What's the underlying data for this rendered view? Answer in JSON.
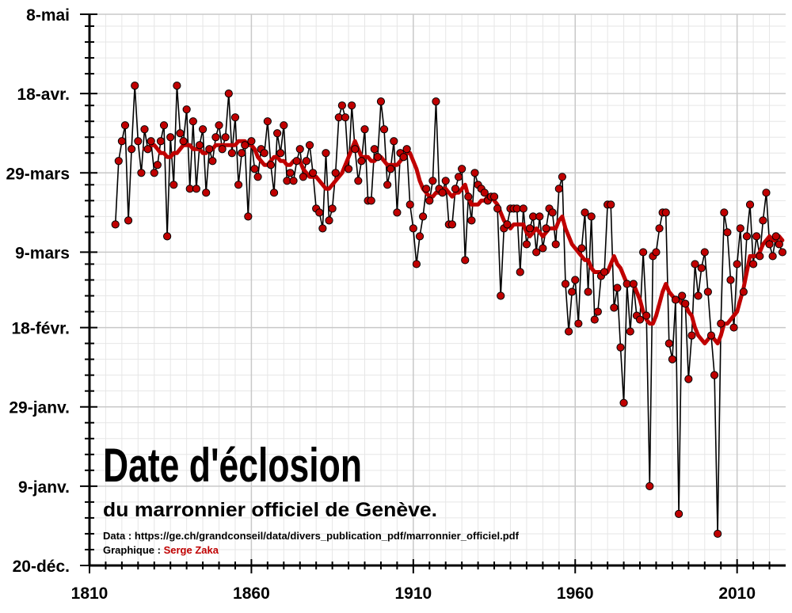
{
  "chart_data": {
    "type": "line",
    "title": "Date d'éclosion",
    "subtitle": "du marronnier officiel de Genève.",
    "source": "Data : https://ge.ch/grandconseil/data/divers_publication_pdf/marronnier_officiel.pdf",
    "credit": {
      "label": "Graphique :",
      "author": "Serge Zaka"
    },
    "x": [
      1818,
      1819,
      1820,
      1821,
      1822,
      1823,
      1824,
      1825,
      1826,
      1827,
      1828,
      1829,
      1830,
      1831,
      1832,
      1833,
      1834,
      1835,
      1836,
      1837,
      1838,
      1839,
      1840,
      1841,
      1842,
      1843,
      1844,
      1845,
      1846,
      1847,
      1848,
      1849,
      1850,
      1851,
      1852,
      1853,
      1854,
      1855,
      1856,
      1857,
      1858,
      1859,
      1860,
      1861,
      1862,
      1863,
      1864,
      1865,
      1866,
      1867,
      1868,
      1869,
      1870,
      1871,
      1872,
      1873,
      1874,
      1875,
      1876,
      1877,
      1878,
      1879,
      1880,
      1881,
      1882,
      1883,
      1884,
      1885,
      1886,
      1887,
      1888,
      1889,
      1890,
      1891,
      1892,
      1893,
      1894,
      1895,
      1896,
      1897,
      1898,
      1899,
      1900,
      1901,
      1902,
      1903,
      1904,
      1905,
      1906,
      1907,
      1908,
      1909,
      1910,
      1911,
      1912,
      1913,
      1914,
      1915,
      1916,
      1917,
      1918,
      1919,
      1920,
      1921,
      1922,
      1923,
      1924,
      1925,
      1926,
      1927,
      1928,
      1929,
      1930,
      1931,
      1932,
      1933,
      1934,
      1935,
      1936,
      1937,
      1938,
      1939,
      1940,
      1941,
      1942,
      1943,
      1944,
      1945,
      1946,
      1947,
      1948,
      1949,
      1950,
      1951,
      1952,
      1953,
      1954,
      1955,
      1956,
      1957,
      1958,
      1959,
      1960,
      1961,
      1962,
      1963,
      1964,
      1965,
      1966,
      1967,
      1968,
      1969,
      1970,
      1971,
      1972,
      1973,
      1974,
      1975,
      1976,
      1977,
      1978,
      1979,
      1980,
      1981,
      1982,
      1983,
      1984,
      1985,
      1986,
      1987,
      1988,
      1989,
      1990,
      1991,
      1992,
      1993,
      1994,
      1995,
      1996,
      1997,
      1998,
      1999,
      2000,
      2001,
      2002,
      2003,
      2004,
      2005,
      2006,
      2007,
      2008,
      2009,
      2010,
      2011,
      2012,
      2013,
      2014,
      2015,
      2016,
      2017,
      2018,
      2019,
      2020,
      2021,
      2022,
      2023,
      2024
    ],
    "series": [
      {
        "color": "#000000",
        "marker_color": "#c00000",
        "values": [
          75,
          91,
          96,
          100,
          76,
          94,
          110,
          96,
          88,
          99,
          94,
          96,
          88,
          90,
          96,
          100,
          72,
          97,
          85,
          110,
          98,
          96,
          104,
          84,
          101,
          84,
          95,
          99,
          83,
          94,
          91,
          97,
          100,
          94,
          97,
          108,
          93,
          102,
          85,
          93,
          95,
          77,
          96,
          89,
          87,
          94,
          93,
          101,
          90,
          83,
          98,
          93,
          100,
          86,
          88,
          86,
          91,
          94,
          87,
          91,
          95,
          88,
          79,
          78,
          74,
          93,
          76,
          79,
          88,
          102,
          105,
          102,
          89,
          105,
          94,
          86,
          91,
          99,
          81,
          81,
          94,
          92,
          106,
          99,
          85,
          89,
          96,
          78,
          93,
          92,
          94,
          80,
          74,
          65,
          72,
          77,
          84,
          81,
          86,
          106,
          84,
          83,
          86,
          75,
          75,
          84,
          87,
          89,
          66,
          82,
          76,
          88,
          85,
          84,
          83,
          81,
          82,
          82,
          79,
          57,
          74,
          75,
          79,
          79,
          79,
          63,
          79,
          70,
          74,
          77,
          68,
          77,
          69,
          74,
          79,
          78,
          70,
          84,
          87,
          60,
          48,
          58,
          61,
          50,
          69,
          78,
          58,
          77,
          51,
          53,
          62,
          63,
          80,
          80,
          54,
          59,
          44,
          30,
          60,
          48,
          60,
          52,
          51,
          68,
          52,
          9,
          67,
          68,
          74,
          78,
          78,
          45,
          41,
          56,
          2,
          57,
          55,
          36,
          47,
          65,
          57,
          64,
          68,
          58,
          47,
          37,
          -3,
          50,
          78,
          73,
          61,
          49,
          65,
          74,
          58,
          72,
          80,
          65,
          72,
          67,
          76,
          83,
          70,
          67,
          72,
          70,
          68
        ]
      },
      {
        "color": "#c00000",
        "values": [
          null,
          null,
          null,
          null,
          null,
          null,
          null,
          null,
          null,
          94,
          94,
          95,
          95,
          94,
          93,
          93,
          92,
          92,
          93,
          93,
          94,
          95,
          95,
          95,
          94,
          94,
          94,
          93,
          93,
          94,
          94,
          95,
          95,
          95,
          95,
          95,
          95,
          95,
          96,
          96,
          96,
          95,
          95,
          94,
          92,
          91,
          90,
          90,
          91,
          92,
          92,
          91,
          91,
          90,
          90,
          91,
          91,
          91,
          89,
          88,
          87,
          87,
          87,
          86,
          85,
          84,
          84,
          85,
          86,
          87,
          88,
          90,
          92,
          94,
          96,
          94,
          92,
          92,
          92,
          91,
          91,
          92,
          92,
          91,
          90,
          90,
          90,
          90,
          91,
          92,
          93,
          93,
          91,
          89,
          86,
          84,
          83,
          82,
          82,
          83,
          83,
          84,
          84,
          83,
          82,
          83,
          83,
          84,
          85,
          82,
          80,
          80,
          80,
          81,
          81,
          82,
          82,
          81,
          80,
          78,
          76,
          75,
          74,
          75,
          75,
          75,
          75,
          73,
          72,
          73,
          74,
          73,
          72,
          73,
          74,
          74,
          74,
          76,
          77,
          74,
          72,
          70,
          69,
          68,
          67,
          66,
          66,
          64,
          63,
          63,
          63,
          63,
          63,
          65,
          67,
          65,
          64,
          62,
          60,
          60,
          60,
          58,
          56,
          53,
          51,
          50,
          50,
          52,
          55,
          58,
          60,
          58,
          57,
          56,
          56,
          55,
          55,
          53,
          52,
          49,
          47,
          46,
          45,
          46,
          47,
          46,
          45,
          47,
          50,
          50,
          51,
          52,
          53,
          56,
          59,
          63,
          67,
          67,
          67,
          68,
          70,
          71,
          72,
          71,
          71,
          72,
          71
        ]
      }
    ],
    "xlim": [
      1810,
      2025
    ],
    "xticks": [
      1810,
      1860,
      1910,
      1960,
      2010
    ],
    "xminorticks": [
      1815,
      1820,
      1825,
      1830,
      1835,
      1840,
      1845,
      1850,
      1855,
      1865,
      1870,
      1875,
      1880,
      1885,
      1890,
      1895,
      1900,
      1905,
      1915,
      1920,
      1925,
      1930,
      1935,
      1940,
      1945,
      1950,
      1955,
      1965,
      1970,
      1975,
      1980,
      1985,
      1990,
      1995,
      2000,
      2005,
      2015,
      2020
    ],
    "ylim": [
      -11,
      128
    ],
    "yticks": [
      {
        "value": -11,
        "label": "20-déc."
      },
      {
        "value": 9,
        "label": "9-janv."
      },
      {
        "value": 29,
        "label": "29-janv."
      },
      {
        "value": 49,
        "label": "18-févr."
      },
      {
        "value": 68,
        "label": "9-mars"
      },
      {
        "value": 88,
        "label": "29-mars"
      },
      {
        "value": 108,
        "label": "18-avr."
      },
      {
        "value": 128,
        "label": "8-mai"
      }
    ],
    "yminorticks": [
      -7,
      -3,
      1,
      5,
      13,
      17,
      21,
      25,
      33,
      37,
      41,
      45,
      53,
      57,
      61,
      65,
      73,
      77,
      81,
      85,
      93,
      97,
      101,
      105,
      113,
      117,
      121,
      125
    ],
    "grid": true
  }
}
